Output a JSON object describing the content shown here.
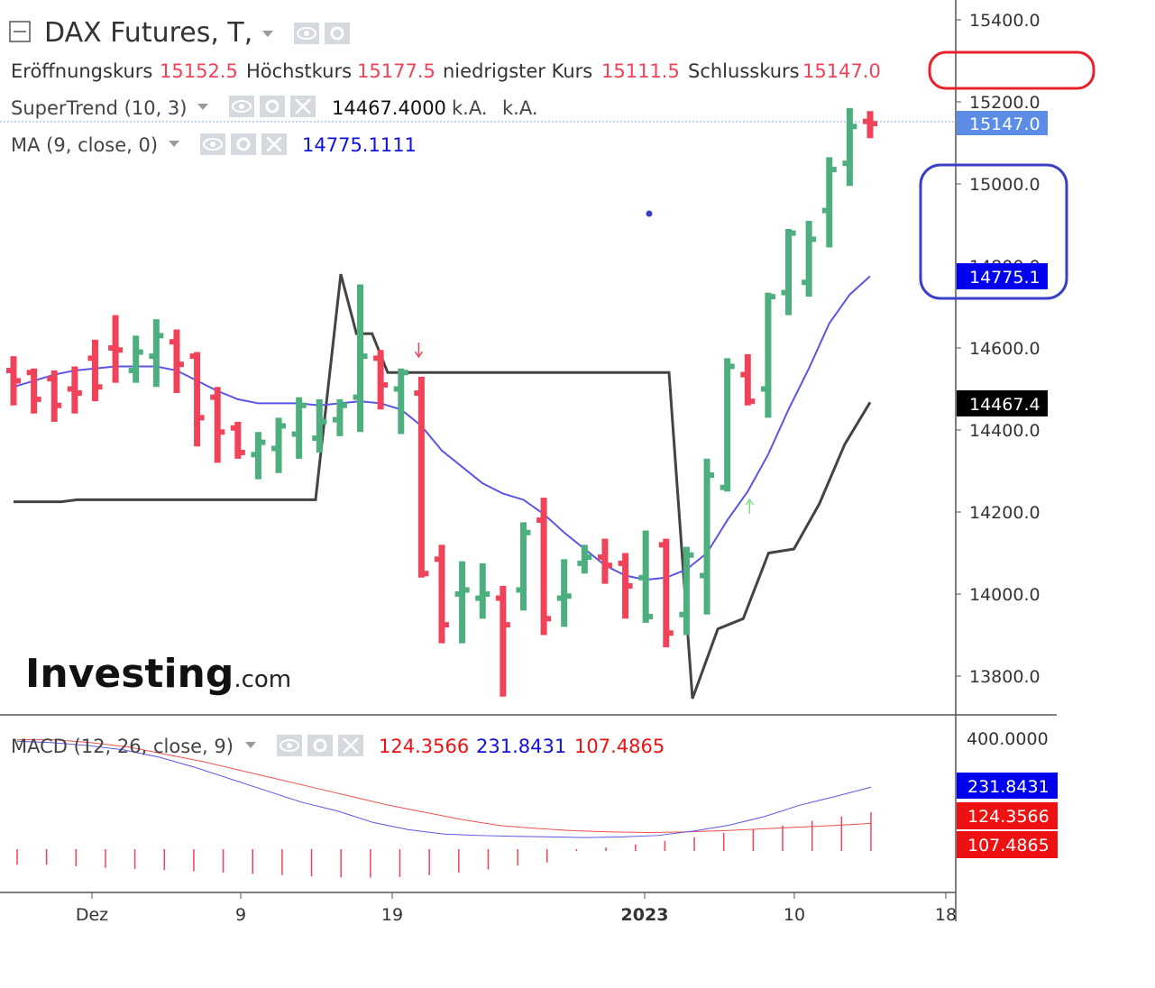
{
  "header": {
    "symbol": "DAX Futures, T,",
    "ohlc": [
      {
        "label": "Eröffnungskurs",
        "value": "15152.5"
      },
      {
        "label": "Höchstkurs",
        "value": "15177.5"
      },
      {
        "label": "niedrigster Kurs",
        "value": "15111.5"
      },
      {
        "label": "Schlusskurs",
        "value": "15147.0"
      }
    ],
    "supertrend": {
      "label": "SuperTrend (10, 3)",
      "value": "14467.4000",
      "extra1": "k.A.",
      "extra2": "k.A."
    },
    "ma": {
      "label": "MA (9, close, 0)",
      "value": "14775.1111"
    },
    "macd": {
      "label": "MACD (12, 26, close, 9)",
      "v1": "124.3566",
      "v2": "231.8431",
      "v3": "107.4865"
    }
  },
  "watermark": {
    "brand": "Investing",
    "suffix": ".com"
  },
  "price_tags": {
    "last": "15147.0",
    "ma": "14775.1",
    "supertrend": "14467.4",
    "macd_blue": "231.8431",
    "macd_red1": "124.3566",
    "macd_red2": "107.4865"
  },
  "colors": {
    "up": "#4caf7d",
    "down": "#f0435a",
    "ma": "#5a55e6",
    "supertrend": "#444444",
    "macd_line": "#5a55e6",
    "macd_signal": "#f05050",
    "macd_hist": "#f0435a",
    "annotation_red": "#e8202a",
    "annotation_blue": "#3a3fc8",
    "last_price_tag": "#5b8ce6",
    "ma_tag": "#0000ee"
  },
  "chart_data": {
    "type": "ohlc",
    "y_axis": {
      "ticks": [
        "15400.0",
        "15200.0",
        "15000.0",
        "14800.0",
        "14600.0",
        "14400.0",
        "14200.0",
        "14000.0",
        "13800.0"
      ],
      "ylim": [
        13700,
        15460
      ]
    },
    "macd_axis": {
      "ticks": [
        "400.0000"
      ]
    },
    "x_axis": {
      "ticks": [
        {
          "label": "Dez",
          "bold": false
        },
        {
          "label": "9",
          "bold": false
        },
        {
          "label": "19",
          "bold": false
        },
        {
          "label": "2023",
          "bold": true
        },
        {
          "label": "10",
          "bold": false
        },
        {
          "label": "18",
          "bold": false
        }
      ]
    },
    "bars": [
      {
        "o": 14545,
        "h": 14580,
        "l": 14460,
        "c": 14520,
        "dir": "down"
      },
      {
        "o": 14540,
        "h": 14550,
        "l": 14440,
        "c": 14475,
        "dir": "down"
      },
      {
        "o": 14525,
        "h": 14545,
        "l": 14420,
        "c": 14460,
        "dir": "down"
      },
      {
        "o": 14500,
        "h": 14555,
        "l": 14440,
        "c": 14490,
        "dir": "down"
      },
      {
        "o": 14575,
        "h": 14620,
        "l": 14470,
        "c": 14505,
        "dir": "down"
      },
      {
        "o": 14600,
        "h": 14680,
        "l": 14515,
        "c": 14595,
        "dir": "down"
      },
      {
        "o": 14545,
        "h": 14630,
        "l": 14515,
        "c": 14590,
        "dir": "up"
      },
      {
        "o": 14580,
        "h": 14670,
        "l": 14505,
        "c": 14630,
        "dir": "up"
      },
      {
        "o": 14615,
        "h": 14645,
        "l": 14490,
        "c": 14560,
        "dir": "down"
      },
      {
        "o": 14580,
        "h": 14590,
        "l": 14360,
        "c": 14430,
        "dir": "down"
      },
      {
        "o": 14480,
        "h": 14505,
        "l": 14320,
        "c": 14395,
        "dir": "down"
      },
      {
        "o": 14405,
        "h": 14420,
        "l": 14330,
        "c": 14345,
        "dir": "down"
      },
      {
        "o": 14340,
        "h": 14395,
        "l": 14280,
        "c": 14370,
        "dir": "up"
      },
      {
        "o": 14355,
        "h": 14430,
        "l": 14295,
        "c": 14410,
        "dir": "up"
      },
      {
        "o": 14390,
        "h": 14480,
        "l": 14330,
        "c": 14460,
        "dir": "up"
      },
      {
        "o": 14380,
        "h": 14475,
        "l": 14345,
        "c": 14420,
        "dir": "up"
      },
      {
        "o": 14425,
        "h": 14475,
        "l": 14385,
        "c": 14460,
        "dir": "up"
      },
      {
        "o": 14480,
        "h": 14755,
        "l": 14395,
        "c": 14580,
        "dir": "up"
      },
      {
        "o": 14575,
        "h": 14595,
        "l": 14450,
        "c": 14510,
        "dir": "down"
      },
      {
        "o": 14500,
        "h": 14550,
        "l": 14390,
        "c": 14540,
        "dir": "up"
      },
      {
        "o": 14490,
        "h": 14530,
        "l": 14040,
        "c": 14050,
        "dir": "down"
      },
      {
        "o": 14085,
        "h": 14120,
        "l": 13880,
        "c": 13925,
        "dir": "down"
      },
      {
        "o": 14000,
        "h": 14080,
        "l": 13880,
        "c": 14010,
        "dir": "up"
      },
      {
        "o": 13990,
        "h": 14075,
        "l": 13940,
        "c": 14000,
        "dir": "up"
      },
      {
        "o": 13990,
        "h": 14020,
        "l": 13750,
        "c": 13925,
        "dir": "down"
      },
      {
        "o": 14010,
        "h": 14175,
        "l": 13960,
        "c": 14150,
        "dir": "up"
      },
      {
        "o": 14180,
        "h": 14235,
        "l": 13900,
        "c": 13940,
        "dir": "down"
      },
      {
        "o": 13990,
        "h": 14085,
        "l": 13920,
        "c": 13995,
        "dir": "up"
      },
      {
        "o": 14075,
        "h": 14120,
        "l": 14050,
        "c": 14090,
        "dir": "up"
      },
      {
        "o": 14090,
        "h": 14135,
        "l": 14025,
        "c": 14070,
        "dir": "down"
      },
      {
        "o": 14075,
        "h": 14100,
        "l": 13940,
        "c": 14020,
        "dir": "down"
      },
      {
        "o": 14040,
        "h": 14155,
        "l": 13930,
        "c": 13945,
        "dir": "up"
      },
      {
        "o": 14120,
        "h": 14135,
        "l": 13870,
        "c": 13905,
        "dir": "down"
      },
      {
        "o": 13950,
        "h": 14115,
        "l": 13900,
        "c": 14095,
        "dir": "up"
      },
      {
        "o": 14045,
        "h": 14330,
        "l": 13950,
        "c": 14290,
        "dir": "up"
      },
      {
        "o": 14260,
        "h": 14575,
        "l": 14250,
        "c": 14555,
        "dir": "up"
      },
      {
        "o": 14535,
        "h": 14585,
        "l": 14460,
        "c": 14470,
        "dir": "down"
      },
      {
        "o": 14500,
        "h": 14735,
        "l": 14430,
        "c": 14725,
        "dir": "up"
      },
      {
        "o": 14735,
        "h": 14890,
        "l": 14680,
        "c": 14880,
        "dir": "up"
      },
      {
        "o": 14760,
        "h": 14910,
        "l": 14725,
        "c": 14865,
        "dir": "up"
      },
      {
        "o": 14935,
        "h": 15065,
        "l": 14845,
        "c": 15035,
        "dir": "up"
      },
      {
        "o": 15050,
        "h": 15185,
        "l": 14995,
        "c": 15140,
        "dir": "up"
      },
      {
        "o": 15152.5,
        "h": 15177.5,
        "l": 15111.5,
        "c": 15147,
        "dir": "down"
      }
    ],
    "ma_line": [
      14505,
      14520,
      14535,
      14545,
      14550,
      14555,
      14555,
      14555,
      14545,
      14520,
      14495,
      14475,
      14465,
      14465,
      14465,
      14460,
      14465,
      14470,
      14465,
      14450,
      14410,
      14350,
      14310,
      14270,
      14245,
      14230,
      14195,
      14150,
      14110,
      14070,
      14045,
      14035,
      14040,
      14060,
      14100,
      14180,
      14250,
      14340,
      14450,
      14550,
      14660,
      14730,
      14775.1111
    ],
    "supertrend_line": [
      14225,
      14225,
      14225,
      14225,
      14230,
      14230,
      14230,
      14230,
      14230,
      14230,
      14230,
      14230,
      14230,
      14230,
      14230,
      14230,
      14230,
      14230,
      14230,
      14230,
      14780,
      14635,
      14635,
      14540,
      14540,
      14540,
      14540,
      14540,
      14540,
      14540,
      14540,
      14540,
      14540,
      14540,
      14540,
      14540,
      14540,
      14540,
      14540,
      14540,
      14540,
      14540,
      13745,
      13915,
      13940,
      14100,
      14110,
      14220,
      14365,
      14467.4
    ],
    "signals": [
      {
        "bar": 20,
        "type": "sell"
      },
      {
        "bar": 36,
        "type": "buy"
      }
    ],
    "macd_line": [
      390,
      385,
      375,
      360,
      335,
      300,
      260,
      220,
      180,
      150,
      120,
      95,
      80,
      75,
      72,
      70,
      68,
      70,
      75,
      90,
      110,
      140,
      170,
      200,
      231.8431
    ],
    "signal_line": [
      395,
      395,
      385,
      370,
      345,
      320,
      290,
      260,
      230,
      200,
      170,
      145,
      120,
      100,
      90,
      82,
      78,
      76,
      78,
      82,
      88,
      94,
      100,
      107.4865
    ],
    "histogram": [
      -15,
      -15,
      -20,
      -25,
      -28,
      -32,
      -36,
      -40,
      -44,
      -48,
      -52,
      -55,
      -56,
      -54,
      -48,
      -40,
      -30,
      -18,
      -8,
      0,
      6,
      16,
      28,
      40,
      55,
      68,
      80,
      95,
      110,
      124.3566
    ]
  }
}
